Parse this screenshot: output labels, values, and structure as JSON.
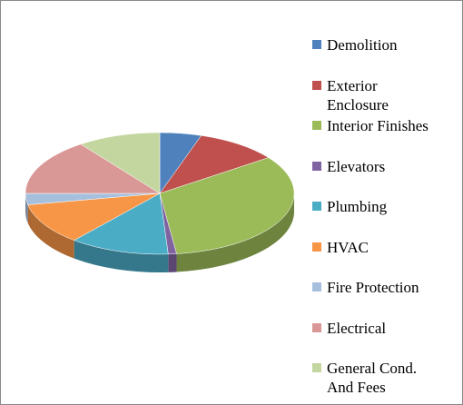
{
  "chart_data": {
    "type": "pie3d",
    "categories": [
      "Demolition",
      "Exterior Enclosure",
      "Interior Finishes",
      "Elevators",
      "Plumbing",
      "HVAC",
      "Fire Protection",
      "Electrical",
      "General Cond. And Fees"
    ],
    "values": [
      5,
      10,
      33,
      1,
      12,
      11,
      3,
      15,
      10
    ],
    "colors": [
      "#4f81bd",
      "#c0504d",
      "#9bbb59",
      "#8064a2",
      "#4bacc6",
      "#f79646",
      "#a5bfdd",
      "#d99795",
      "#c4d6a0"
    ]
  }
}
